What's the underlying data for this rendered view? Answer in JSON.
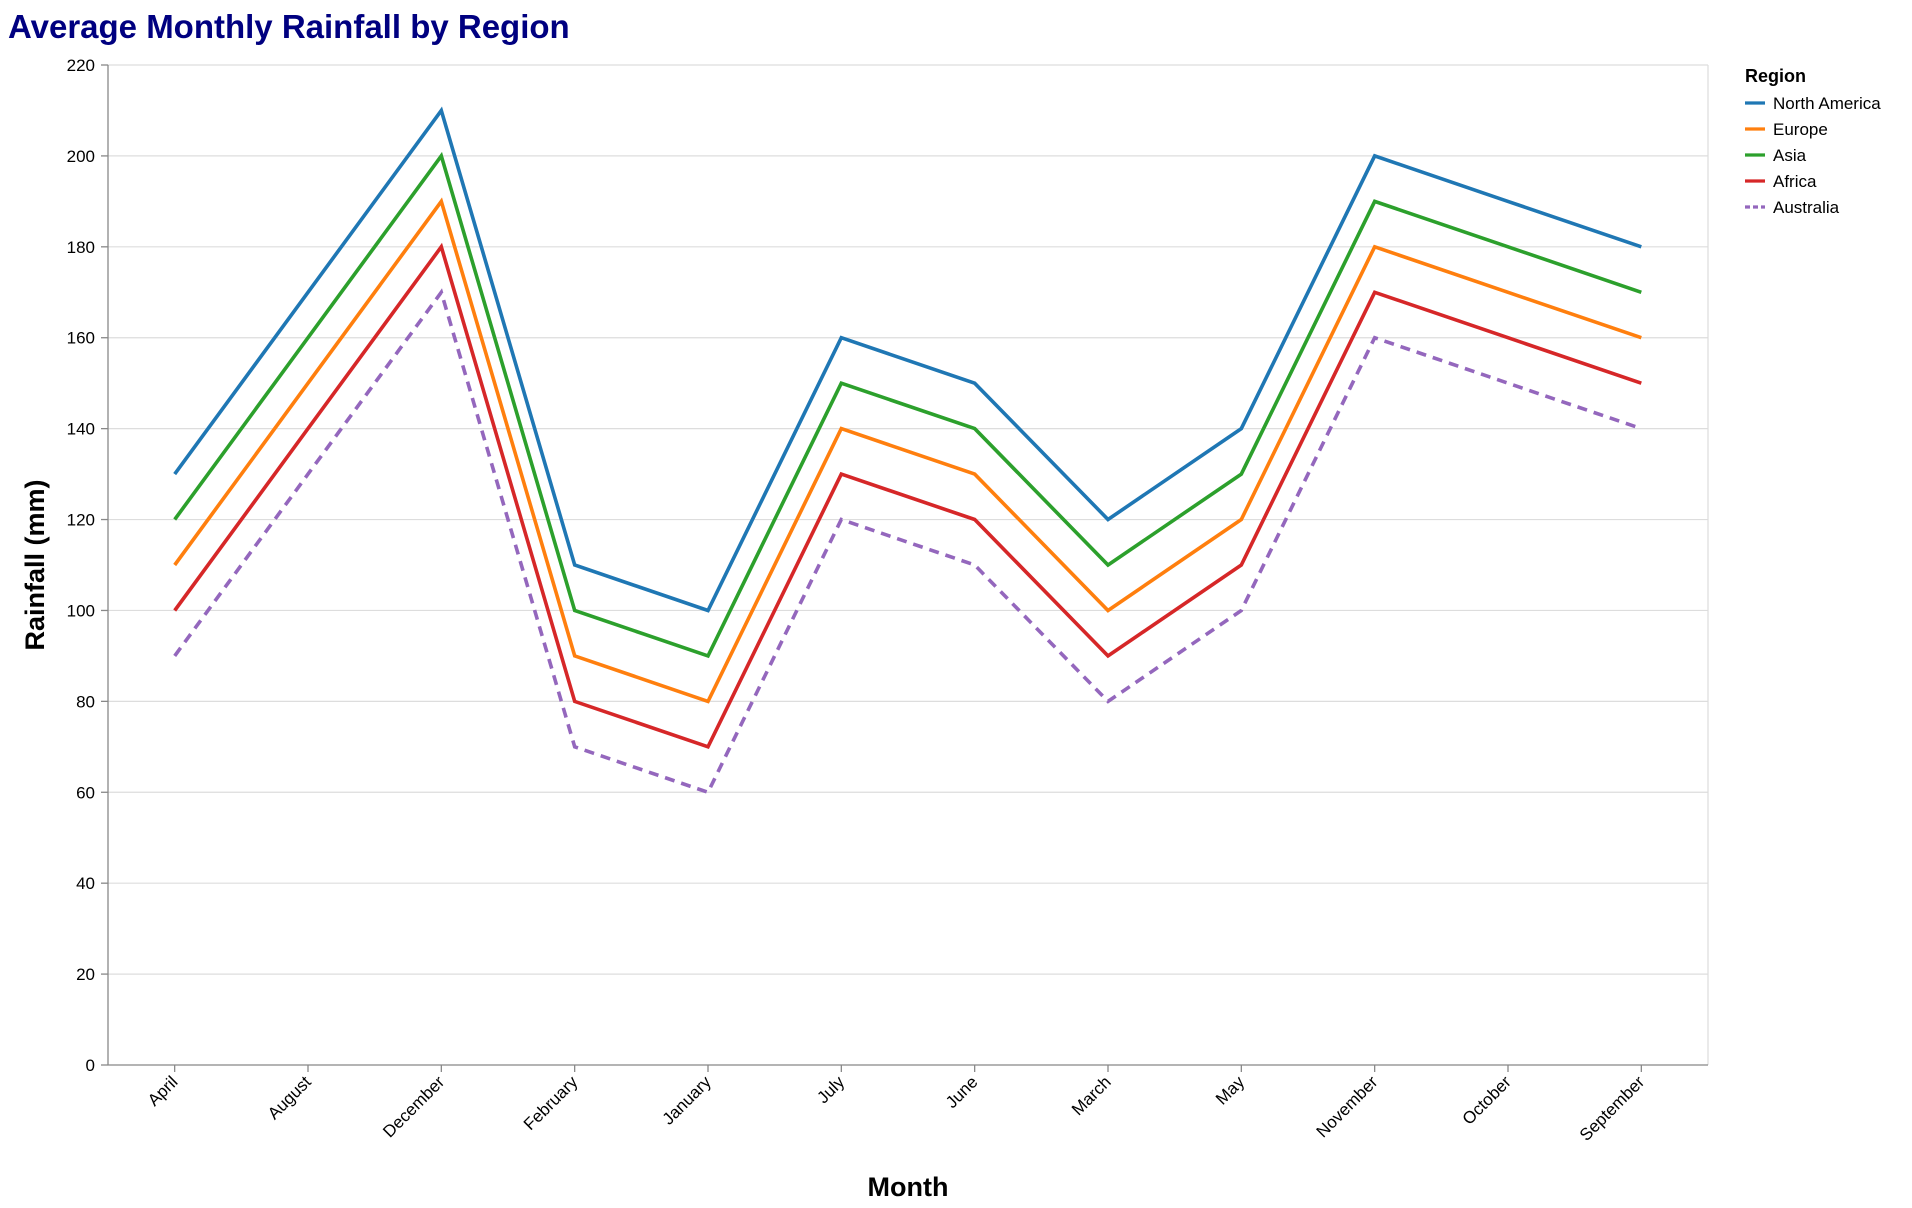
{
  "chart_data": {
    "type": "line",
    "title": "Average Monthly Rainfall by Region",
    "xlabel": "Month",
    "ylabel": "Rainfall (mm)",
    "categories": [
      "April",
      "August",
      "December",
      "February",
      "January",
      "July",
      "June",
      "March",
      "May",
      "November",
      "October",
      "September"
    ],
    "ylim": [
      0,
      220
    ],
    "yticks": [
      0,
      20,
      40,
      60,
      80,
      100,
      120,
      140,
      160,
      180,
      200,
      220
    ],
    "grid": true,
    "legend": {
      "title": "Region",
      "position": "top-right"
    },
    "series": [
      {
        "name": "North America",
        "color": "#1f77b4",
        "dash": "solid",
        "values": [
          130,
          170,
          210,
          110,
          100,
          160,
          150,
          120,
          140,
          200,
          190,
          180
        ]
      },
      {
        "name": "Europe",
        "color": "#ff7f0e",
        "dash": "solid",
        "values": [
          110,
          150,
          190,
          90,
          80,
          140,
          130,
          100,
          120,
          180,
          170,
          160
        ]
      },
      {
        "name": "Asia",
        "color": "#2ca02c",
        "dash": "solid",
        "values": [
          120,
          160,
          200,
          100,
          90,
          150,
          140,
          110,
          130,
          190,
          180,
          170
        ]
      },
      {
        "name": "Africa",
        "color": "#d62728",
        "dash": "solid",
        "values": [
          100,
          140,
          180,
          80,
          70,
          130,
          120,
          90,
          110,
          170,
          160,
          150
        ]
      },
      {
        "name": "Australia",
        "color": "#9467bd",
        "dash": "dashed",
        "values": [
          90,
          130,
          170,
          70,
          60,
          120,
          110,
          80,
          100,
          160,
          150,
          140
        ]
      }
    ]
  }
}
